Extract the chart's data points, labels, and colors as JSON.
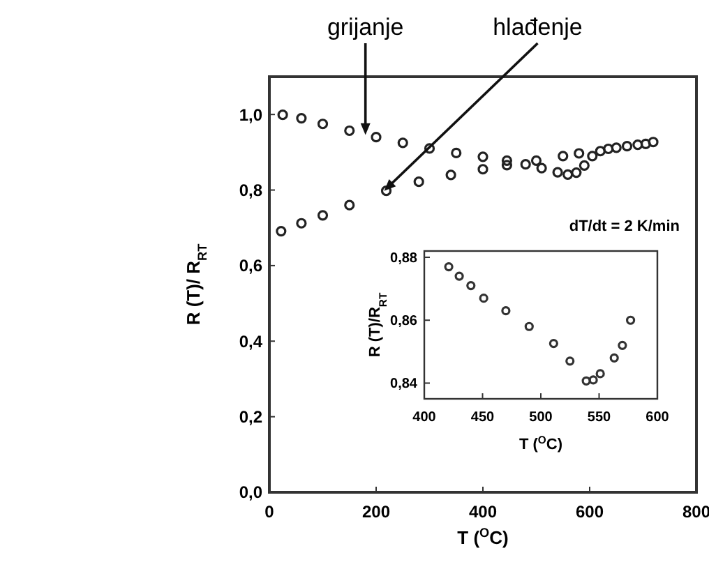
{
  "chart_data": [
    {
      "type": "scatter",
      "xlabel": "T ($^{O}$C)",
      "ylabel": "R (T)/ R$_{RT}$",
      "marker": "circle",
      "xlim": [
        0,
        800
      ],
      "xticks": [
        0,
        200,
        400,
        600,
        800
      ],
      "ylim": [
        0,
        1.1
      ],
      "yticks": [
        {
          "value": 0,
          "label": "0,0"
        },
        {
          "value": 0.2,
          "label": "0,2"
        },
        {
          "value": 0.4,
          "label": "0,4"
        },
        {
          "value": 0.6,
          "label": "0,6"
        },
        {
          "value": 0.8,
          "label": "0,8"
        },
        {
          "value": 1,
          "label": "1,0"
        }
      ],
      "series": [
        {
          "color": "#222222",
          "x": [
            25,
            60,
            100,
            150,
            200,
            250,
            300,
            350,
            400,
            445,
            480,
            510,
            540,
            559,
            575,
            590,
            605,
            620,
            650,
            690,
            719
          ],
          "values": [
            0.999,
            0.99,
            0.975,
            0.957,
            0.94,
            0.925,
            0.91,
            0.898,
            0.888,
            0.878,
            0.868,
            0.858,
            0.847,
            0.841,
            0.846,
            0.865,
            0.89,
            0.903,
            0.912,
            0.92,
            0.927
          ]
        },
        {
          "color": "#222222",
          "x": [
            22,
            60,
            100,
            150,
            219,
            280,
            340,
            400,
            445,
            500,
            550,
            580,
            635,
            670,
            705
          ],
          "values": [
            0.691,
            0.712,
            0.733,
            0.76,
            0.798,
            0.822,
            0.84,
            0.855,
            0.866,
            0.878,
            0.89,
            0.897,
            0.909,
            0.916,
            0.922
          ]
        }
      ],
      "annotations": [
        {
          "text": "grijanje",
          "x": 180,
          "y": 0.946
        },
        {
          "text": "hlađenje",
          "x": 215,
          "y": 0.798
        },
        "dT/dt = 2 K/min"
      ]
    },
    {
      "type": "scatter",
      "xlabel": "T ($^{O}$C)",
      "ylabel": "R (T)/R$_{RT}$",
      "marker": "circle",
      "xlim": [
        400,
        600
      ],
      "xticks": [
        400,
        450,
        500,
        550,
        600
      ],
      "ylim": [
        0.835,
        0.882
      ],
      "yticks": [
        {
          "value": 0.84,
          "label": "0,84"
        },
        {
          "value": 0.86,
          "label": "0,86"
        },
        {
          "value": 0.88,
          "label": "0,88"
        }
      ],
      "series": [
        {
          "color": "#333333",
          "x": [
            421,
            430,
            440,
            451,
            470,
            490,
            511,
            525,
            539,
            545,
            551,
            563,
            570,
            577
          ],
          "values": [
            0.877,
            0.874,
            0.871,
            0.867,
            0.863,
            0.858,
            0.8526,
            0.847,
            0.8407,
            0.841,
            0.843,
            0.848,
            0.852,
            0.86
          ]
        }
      ]
    }
  ]
}
